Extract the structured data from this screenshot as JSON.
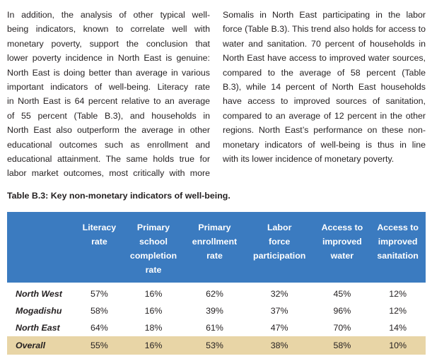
{
  "columns": {
    "left_lines": [
      "In addition, the analysis of other typical well-",
      "being indicators, known to correlate well with",
      "monetary poverty, support the conclusion that",
      "lower poverty incidence in North East is genuine:",
      "North East is doing better than average in various",
      "important indicators of well-being. Literacy rate",
      "in North East is 64 percent relative to an average",
      "of 55 percent (Table B.3), and households in",
      "North East also outperform the average in other",
      "educational outcomes such as enrollment and",
      "educational attainment. The same holds true for",
      "labor market outcomes, most critically with more"
    ],
    "right_lines": [
      "Somalis in North East participating in the labor",
      "force (Table B.3). This trend also holds for access to",
      "water and sanitation. 70 percent of households in",
      "North East have access to improved water sources,",
      "compared to the average of 58 percent (Table",
      "B.3), while 14 percent of North East households",
      "have access to improved sources of sanitation,",
      "compared to an average of 12 percent in the other",
      "regions. North East’s performance on these non-",
      "monetary indicators of well-being is thus in line",
      "with its lower incidence of monetary poverty."
    ]
  },
  "table": {
    "title": "Table B.3: Key non-monetary indicators of well-being.",
    "headers": [
      [
        "Literacy",
        "rate"
      ],
      [
        "Primary",
        "school",
        "completion",
        "rate"
      ],
      [
        "Primary",
        "enrollment",
        "rate"
      ],
      [
        "Labor",
        "force",
        "participation"
      ],
      [
        "Access to",
        "improved",
        "water"
      ],
      [
        "Access to",
        "improved",
        "sanitation"
      ]
    ],
    "rows": [
      {
        "label": "North West",
        "values": [
          "57%",
          "16%",
          "62%",
          "32%",
          "45%",
          "12%"
        ]
      },
      {
        "label": "Mogadishu",
        "values": [
          "58%",
          "16%",
          "39%",
          "37%",
          "96%",
          "12%"
        ]
      },
      {
        "label": "North East",
        "values": [
          "64%",
          "18%",
          "61%",
          "47%",
          "70%",
          "14%"
        ]
      },
      {
        "label": "Overall",
        "values": [
          "55%",
          "16%",
          "53%",
          "38%",
          "58%",
          "10%"
        ]
      }
    ]
  },
  "colors": {
    "header_background": "#3b7bc0",
    "header_text": "#ffffff",
    "overall_row_background": "#e8d5a6",
    "body_text": "#231f20"
  }
}
